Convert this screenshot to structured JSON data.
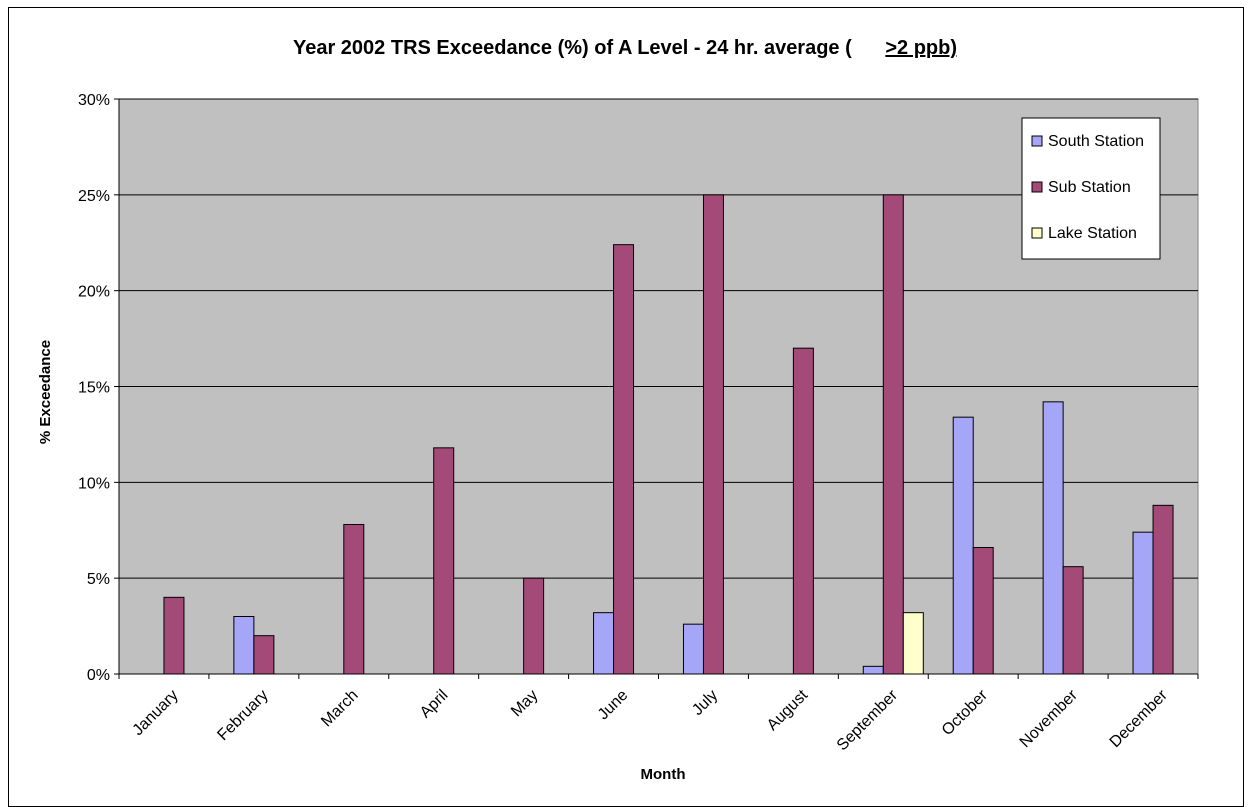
{
  "chart_data": {
    "type": "bar",
    "title": {
      "main": "Year 2002 TRS Exceedance (%) of A Level - 24 hr. average (",
      "threshold": ">2 ppb)"
    },
    "xlabel": "Month",
    "ylabel": "% Exceedance",
    "ylim": [
      0,
      30
    ],
    "yticks": [
      "0%",
      "5%",
      "10%",
      "15%",
      "20%",
      "25%",
      "30%"
    ],
    "categories": [
      "January",
      "February",
      "March",
      "April",
      "May",
      "June",
      "July",
      "August",
      "September",
      "October",
      "November",
      "December"
    ],
    "series": [
      {
        "name": "South Station",
        "color": "#a6a6f8",
        "values": [
          0,
          3.0,
          0,
          0,
          0,
          3.2,
          2.6,
          0,
          0.4,
          13.4,
          14.2,
          7.4
        ]
      },
      {
        "name": "Sub Station",
        "color": "#a44a78",
        "values": [
          4.0,
          2.0,
          7.8,
          11.8,
          5.0,
          22.4,
          25.0,
          17.0,
          25.0,
          6.6,
          5.6,
          8.8
        ]
      },
      {
        "name": "Lake Station",
        "color": "#ffffcc",
        "values": [
          0,
          0,
          0,
          0,
          0,
          0,
          0,
          0,
          3.2,
          0,
          0,
          0
        ]
      }
    ],
    "grid": true,
    "plot_background": "#c0c0c0",
    "legend_position": "top-right"
  }
}
